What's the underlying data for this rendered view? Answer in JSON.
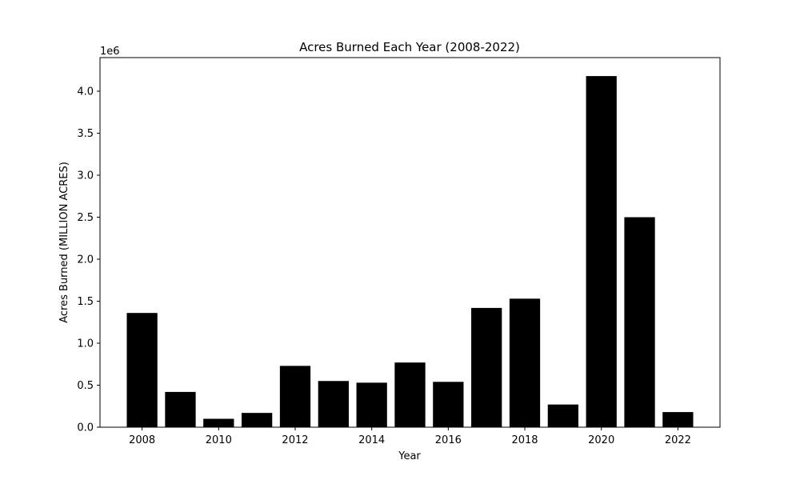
{
  "chart_data": {
    "type": "bar",
    "title": "Acres Burned Each Year (2008-2022)",
    "xlabel": "Year",
    "ylabel": "Acres Burned (MILLION ACRES)",
    "y_offset_label": "1e6",
    "x": [
      2008,
      2009,
      2010,
      2011,
      2012,
      2013,
      2014,
      2015,
      2016,
      2017,
      2018,
      2019,
      2020,
      2021,
      2022
    ],
    "values": [
      1360000,
      420000,
      100000,
      170000,
      730000,
      550000,
      530000,
      770000,
      540000,
      1420000,
      1530000,
      270000,
      4180000,
      2500000,
      180000
    ],
    "xlim": [
      2006.9,
      2023.1
    ],
    "ylim": [
      0,
      4400000
    ],
    "x_ticks": [
      2008,
      2010,
      2012,
      2014,
      2016,
      2018,
      2020,
      2022
    ],
    "x_tick_labels": [
      "2008",
      "2010",
      "2012",
      "2014",
      "2016",
      "2018",
      "2020",
      "2022"
    ],
    "y_ticks": [
      0,
      500000,
      1000000,
      1500000,
      2000000,
      2500000,
      3000000,
      3500000,
      4000000
    ],
    "y_tick_labels": [
      "0.0",
      "0.5",
      "1.0",
      "1.5",
      "2.0",
      "2.5",
      "3.0",
      "3.5",
      "4.0"
    ],
    "bar_width": 0.8,
    "bar_color": "#000000",
    "grid": false,
    "legend": "none"
  }
}
